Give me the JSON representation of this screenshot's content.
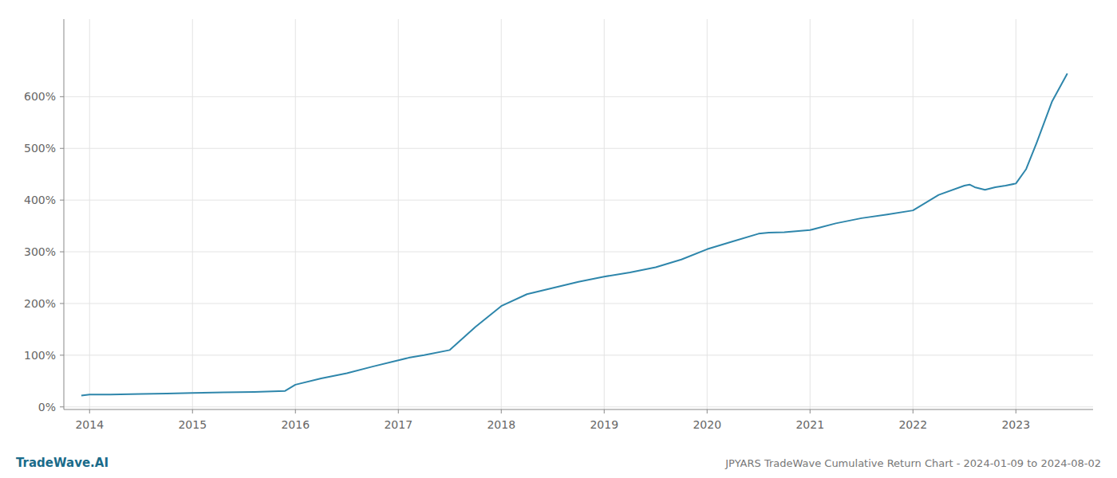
{
  "chart_data": {
    "type": "line",
    "title": "JPYARS TradeWave Cumulative Return Chart - 2024-01-09 to 2024-08-02",
    "annotations": [
      "TradeWave.AI"
    ],
    "color": "#2e86ab",
    "grid": true,
    "xlim": [
      2013.75,
      2023.75
    ],
    "xticks": [
      2014,
      2015,
      2016,
      2017,
      2018,
      2019,
      2020,
      2021,
      2022,
      2023
    ],
    "ylim": [
      -0.05,
      7.5
    ],
    "yticks": [
      {
        "value": 0,
        "label": "0%"
      },
      {
        "value": 1,
        "label": "100%"
      },
      {
        "value": 2,
        "label": "200%"
      },
      {
        "value": 3,
        "label": "300%"
      },
      {
        "value": 4,
        "label": "400%"
      },
      {
        "value": 5,
        "label": "500%"
      },
      {
        "value": 6,
        "label": "600%"
      }
    ],
    "x": [
      2013.92,
      2014.0,
      2014.2,
      2014.5,
      2014.75,
      2015.0,
      2015.3,
      2015.6,
      2015.9,
      2016.0,
      2016.25,
      2016.5,
      2016.75,
      2017.0,
      2017.1,
      2017.25,
      2017.5,
      2017.75,
      2018.0,
      2018.25,
      2018.5,
      2018.75,
      2019.0,
      2019.25,
      2019.5,
      2019.75,
      2020.0,
      2020.25,
      2020.5,
      2020.6,
      2020.75,
      2021.0,
      2021.25,
      2021.5,
      2021.75,
      2022.0,
      2022.25,
      2022.5,
      2022.55,
      2022.6,
      2022.7,
      2022.8,
      2022.9,
      2023.0,
      2023.1,
      2023.2,
      2023.35,
      2023.5
    ],
    "values": [
      0.22,
      0.24,
      0.24,
      0.25,
      0.26,
      0.27,
      0.28,
      0.29,
      0.31,
      0.43,
      0.55,
      0.65,
      0.78,
      0.9,
      0.95,
      1.0,
      1.1,
      1.55,
      1.95,
      2.18,
      2.3,
      2.42,
      2.52,
      2.6,
      2.7,
      2.85,
      3.05,
      3.2,
      3.35,
      3.37,
      3.38,
      3.42,
      3.55,
      3.65,
      3.72,
      3.8,
      4.1,
      4.28,
      4.3,
      4.25,
      4.2,
      4.25,
      4.28,
      4.32,
      4.6,
      5.1,
      5.9,
      6.45
    ]
  }
}
